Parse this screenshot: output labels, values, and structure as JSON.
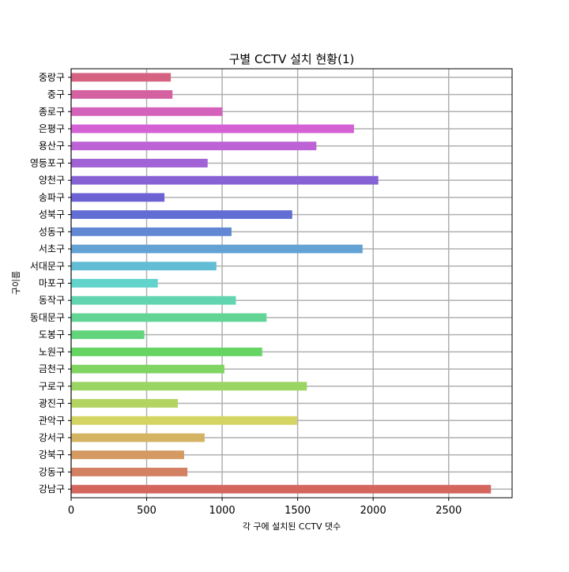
{
  "chart_data": {
    "type": "bar",
    "orientation": "horizontal",
    "title": "구별 CCTV 설치 현황(1)",
    "xlabel": "각 구에 설치된 CCTV 댓수",
    "ylabel": "구이름",
    "xlim": [
      0,
      2920
    ],
    "xticks": [
      0,
      500,
      1000,
      1500,
      2000,
      2500
    ],
    "grid": true,
    "categories": [
      "강남구",
      "강동구",
      "강북구",
      "강서구",
      "관악구",
      "광진구",
      "구로구",
      "금천구",
      "노원구",
      "도봉구",
      "동대문구",
      "동작구",
      "마포구",
      "서대문구",
      "서초구",
      "성동구",
      "성북구",
      "송파구",
      "양천구",
      "영등포구",
      "용산구",
      "은평구",
      "종로구",
      "중구",
      "중랑구"
    ],
    "values": [
      2780,
      770,
      748,
      884,
      1496,
      707,
      1561,
      1015,
      1265,
      485,
      1294,
      1091,
      574,
      962,
      1930,
      1062,
      1464,
      618,
      2034,
      904,
      1624,
      1873,
      1002,
      671,
      660
    ],
    "colors": [
      "#d4665e",
      "#d48062",
      "#d49a62",
      "#d4b462",
      "#d4d462",
      "#b4d462",
      "#9ad462",
      "#80d462",
      "#66d462",
      "#62d47c",
      "#62d496",
      "#62d4b0",
      "#62d4cc",
      "#62bcd4",
      "#62a2d4",
      "#6288d4",
      "#626ed4",
      "#6c62d4",
      "#8662d4",
      "#a062d4",
      "#bc62d4",
      "#d462d4",
      "#d462ba",
      "#d462a0",
      "#d46280"
    ]
  }
}
